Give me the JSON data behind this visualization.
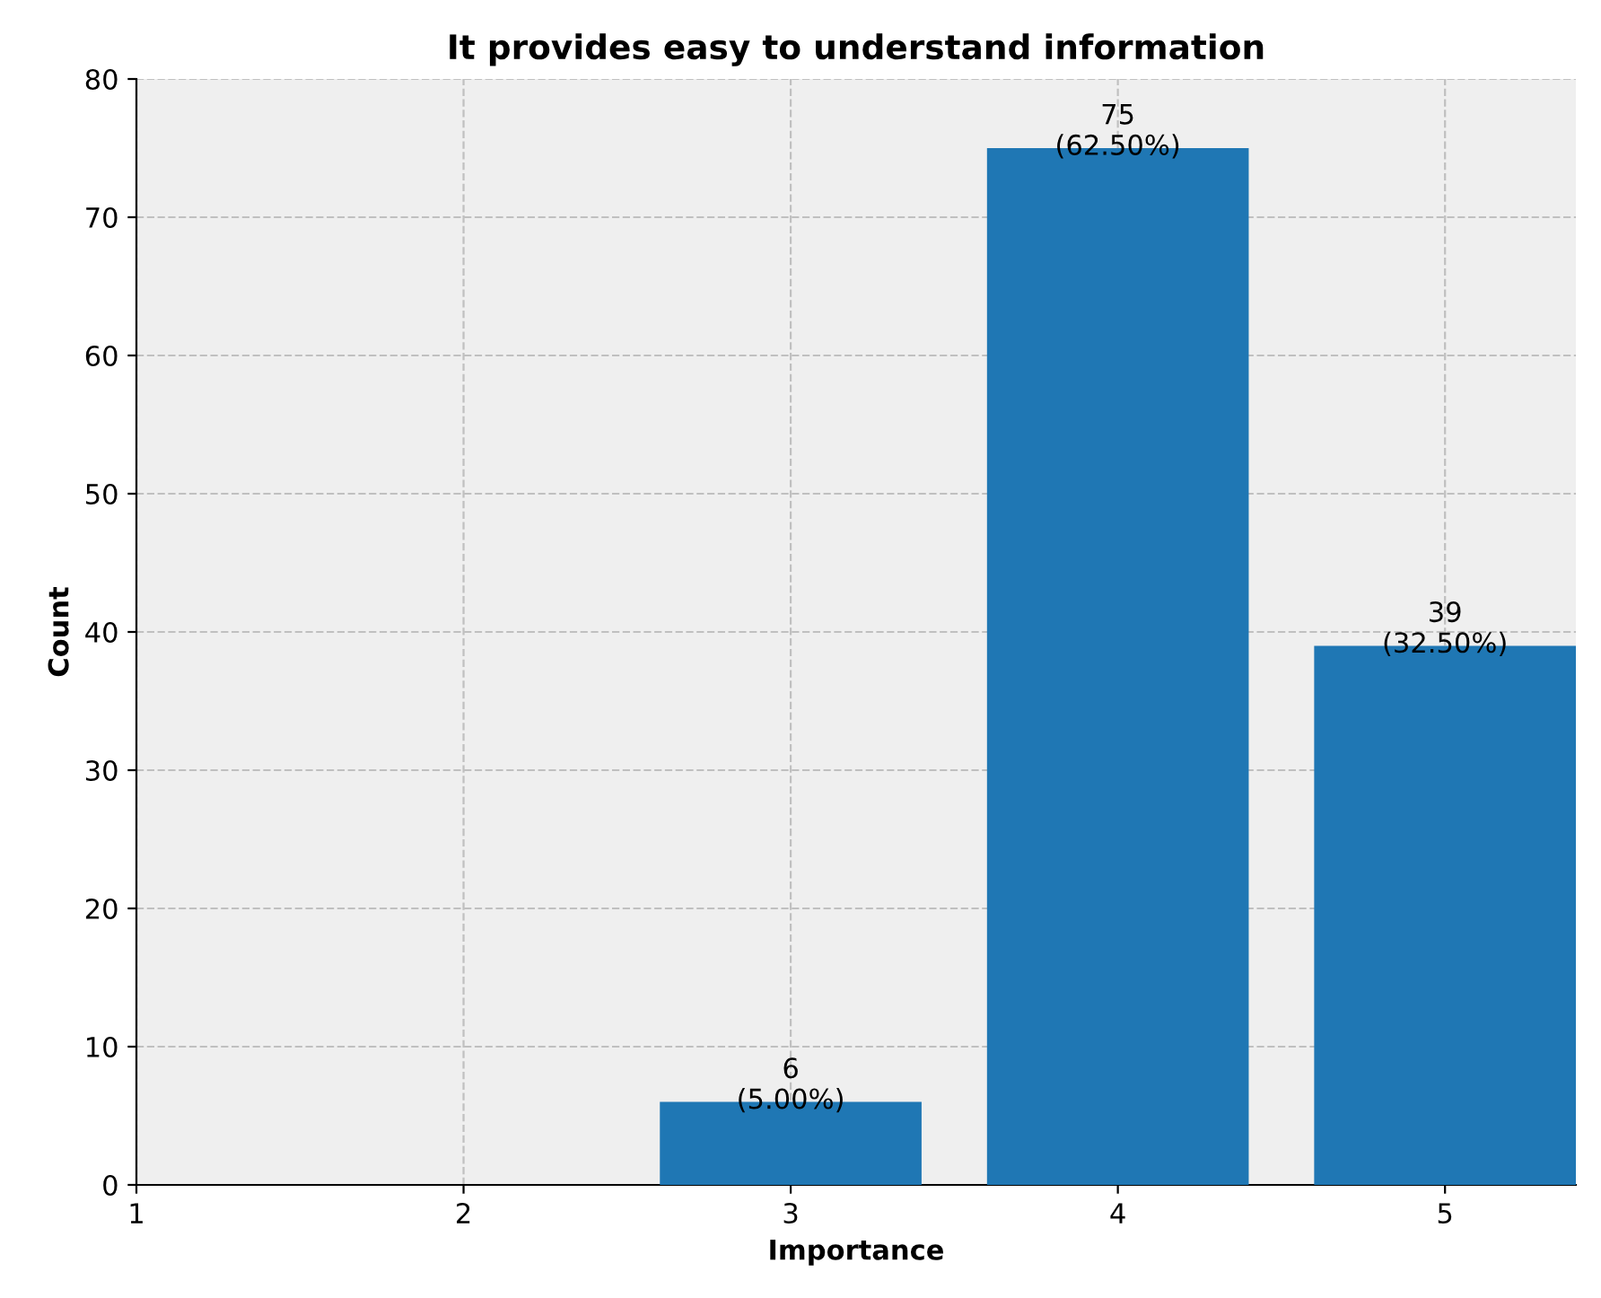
{
  "chart_data": {
    "type": "bar",
    "title": "It provides easy to understand information",
    "xlabel": "Importance",
    "ylabel": "Count",
    "x": [
      3,
      4,
      5
    ],
    "values": [
      6,
      75,
      39
    ],
    "color": "#1f77b4",
    "value_labels": [
      "6\n(5.00%)",
      "75\n(62.50%)",
      "39\n(32.50%)"
    ],
    "xlim": [
      1,
      5.4
    ],
    "xticks": [
      1,
      2,
      3,
      4,
      5
    ],
    "ylim": [
      0,
      80
    ],
    "yticks": [
      0,
      10,
      20,
      30,
      40,
      50,
      60,
      70,
      80
    ],
    "grid": true
  }
}
